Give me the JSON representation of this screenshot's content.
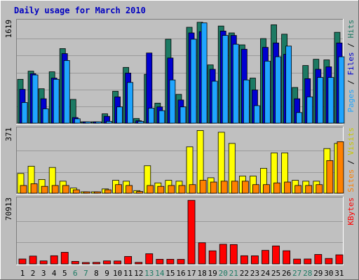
{
  "chart_data": [
    {
      "title": "Daily usage for March 2010",
      "type": "bar",
      "categories": [
        "1",
        "2",
        "3",
        "4",
        "5",
        "6",
        "7",
        "8",
        "9",
        "10",
        "11",
        "12",
        "13",
        "14",
        "15",
        "16",
        "17",
        "18",
        "19",
        "20",
        "21",
        "22",
        "23",
        "24",
        "25",
        "26",
        "27",
        "28",
        "29",
        "30",
        "31"
      ],
      "weekend_days": [
        "6",
        "7",
        "13",
        "14",
        "20",
        "21",
        "27",
        "28"
      ],
      "ymax_label": "1619",
      "ylabel_parts": [
        "Pages",
        "Files",
        "Hits"
      ],
      "ylim": [
        0,
        1619
      ],
      "series": [
        {
          "name": "Hits",
          "color": "#1c7a63",
          "values": [
            700,
            830,
            550,
            820,
            1190,
            380,
            15,
            15,
            150,
            510,
            890,
            75,
            780,
            320,
            1340,
            460,
            1530,
            1610,
            930,
            1550,
            1440,
            1250,
            720,
            1350,
            1570,
            1420,
            570,
            920,
            1020,
            1010,
            1450
          ]
        },
        {
          "name": "Files",
          "color": "#0000d0",
          "values": [
            540,
            790,
            390,
            720,
            1110,
            90,
            10,
            10,
            110,
            420,
            800,
            40,
            1120,
            260,
            1040,
            370,
            1440,
            1460,
            860,
            1470,
            1400,
            1180,
            530,
            1210,
            1280,
            1100,
            390,
            710,
            860,
            900,
            1280
          ]
        },
        {
          "name": "Pages",
          "color": "#1fa5ff",
          "values": [
            330,
            770,
            230,
            700,
            1000,
            70,
            5,
            5,
            30,
            260,
            650,
            30,
            240,
            200,
            690,
            260,
            1340,
            1600,
            670,
            1400,
            1260,
            690,
            280,
            990,
            1060,
            1230,
            170,
            420,
            730,
            730,
            1060
          ]
        }
      ]
    },
    {
      "type": "bar",
      "categories": [
        "1",
        "2",
        "3",
        "4",
        "5",
        "6",
        "7",
        "8",
        "9",
        "10",
        "11",
        "12",
        "13",
        "14",
        "15",
        "16",
        "17",
        "18",
        "19",
        "20",
        "21",
        "22",
        "23",
        "24",
        "25",
        "26",
        "27",
        "28",
        "29",
        "30",
        "31"
      ],
      "ymax_label": "371",
      "ylabel_parts": [
        "Sites",
        "Visits"
      ],
      "ylim": [
        0,
        371
      ],
      "series": [
        {
          "name": "Visits",
          "color": "#ffff00",
          "values": [
            115,
            157,
            80,
            150,
            70,
            30,
            5,
            5,
            25,
            75,
            70,
            15,
            160,
            60,
            75,
            70,
            270,
            365,
            90,
            355,
            290,
            100,
            100,
            145,
            235,
            235,
            75,
            70,
            70,
            260,
            290
          ]
        },
        {
          "name": "Sites",
          "color": "#ff8000",
          "values": [
            45,
            55,
            40,
            45,
            45,
            20,
            3,
            3,
            20,
            50,
            45,
            10,
            45,
            40,
            45,
            45,
            50,
            75,
            65,
            70,
            70,
            70,
            50,
            50,
            60,
            65,
            45,
            45,
            50,
            190,
            300
          ]
        }
      ]
    },
    {
      "type": "bar",
      "categories": [
        "1",
        "2",
        "3",
        "4",
        "5",
        "6",
        "7",
        "8",
        "9",
        "10",
        "11",
        "12",
        "13",
        "14",
        "15",
        "16",
        "17",
        "18",
        "19",
        "20",
        "21",
        "22",
        "23",
        "24",
        "25",
        "26",
        "27",
        "28",
        "29",
        "30",
        "31"
      ],
      "ymax_label": "70913",
      "ylabel_parts": [
        "KBytes"
      ],
      "ylim": [
        0,
        70913
      ],
      "series": [
        {
          "name": "KBytes",
          "color": "#ff0000",
          "values": [
            5400,
            8600,
            3300,
            9000,
            12800,
            2800,
            1500,
            1700,
            3300,
            3200,
            8200,
            1700,
            11200,
            5100,
            5100,
            5000,
            70000,
            23300,
            14400,
            21600,
            21300,
            9000,
            8900,
            14900,
            19800,
            14500,
            5300,
            5400,
            10400,
            6000,
            10000
          ]
        }
      ]
    }
  ]
}
